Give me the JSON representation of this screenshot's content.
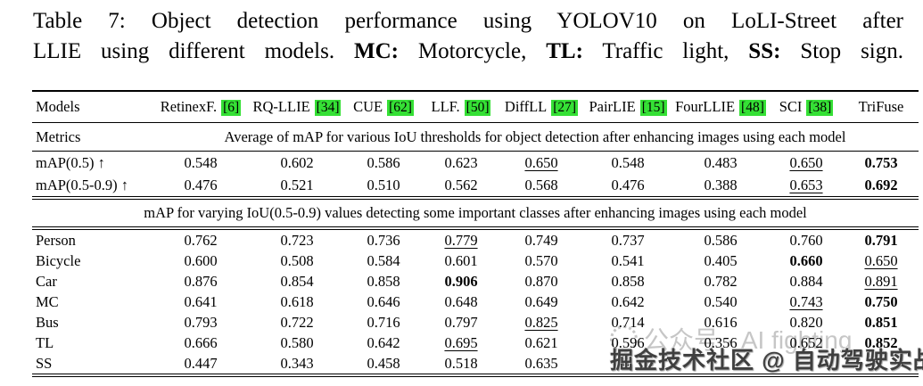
{
  "caption": {
    "line1": "Table 7: Object detection performance using YOLOV10 on LoLI-Street after",
    "line2_prefix": "LLIE using different models. ",
    "mc_label": "MC:",
    "mc_text": " Motorcycle, ",
    "tl_label": "TL:",
    "tl_text": " Traffic light, ",
    "ss_label": "SS:",
    "ss_text": " Stop sign."
  },
  "table": {
    "models_header": "Models",
    "models": [
      {
        "name": "RetinexF.",
        "cite": "[6]"
      },
      {
        "name": "RQ-LLIE",
        "cite": "[34]"
      },
      {
        "name": "CUE",
        "cite": "[62]"
      },
      {
        "name": "LLF.",
        "cite": "[50]"
      },
      {
        "name": "DiffLL",
        "cite": "[27]"
      },
      {
        "name": "PairLIE",
        "cite": "[15]"
      },
      {
        "name": "FourLLIE",
        "cite": "[48]"
      },
      {
        "name": "SCI",
        "cite": "[38]"
      },
      {
        "name": "TriFuse",
        "cite": null
      }
    ],
    "metrics_label": "Metrics",
    "metrics_description": "Average of mAP for various IoU thresholds for object detection after enhancing images using each model",
    "overall_rows": [
      {
        "label": "mAP(0.5) ↑",
        "values": [
          "0.548",
          "0.602",
          "0.586",
          "0.623",
          "0.650",
          "0.548",
          "0.483",
          "0.650",
          "0.753"
        ],
        "styles": [
          "",
          "",
          "",
          "",
          "u",
          "",
          "",
          "u",
          "b"
        ]
      },
      {
        "label": "mAP(0.5-0.9) ↑",
        "values": [
          "0.476",
          "0.521",
          "0.510",
          "0.562",
          "0.568",
          "0.476",
          "0.388",
          "0.653",
          "0.692"
        ],
        "styles": [
          "",
          "",
          "",
          "",
          "",
          "",
          "",
          "u",
          "b"
        ]
      }
    ],
    "section_header": "mAP for varying IoU(0.5-0.9) values detecting some important classes after enhancing images using each model",
    "class_rows": [
      {
        "label": "Person",
        "values": [
          "0.762",
          "0.723",
          "0.736",
          "0.779",
          "0.749",
          "0.737",
          "0.586",
          "0.760",
          "0.791"
        ],
        "styles": [
          "",
          "",
          "",
          "u",
          "",
          "",
          "",
          "",
          "b"
        ]
      },
      {
        "label": "Bicycle",
        "values": [
          "0.600",
          "0.508",
          "0.584",
          "0.601",
          "0.570",
          "0.541",
          "0.405",
          "0.660",
          "0.650"
        ],
        "styles": [
          "",
          "",
          "",
          "",
          "",
          "",
          "",
          "b",
          "u"
        ]
      },
      {
        "label": "Car",
        "values": [
          "0.876",
          "0.854",
          "0.858",
          "0.906",
          "0.870",
          "0.858",
          "0.782",
          "0.884",
          "0.891"
        ],
        "styles": [
          "",
          "",
          "",
          "b",
          "",
          "",
          "",
          "",
          "u"
        ]
      },
      {
        "label": "MC",
        "values": [
          "0.641",
          "0.618",
          "0.646",
          "0.648",
          "0.649",
          "0.642",
          "0.540",
          "0.743",
          "0.750"
        ],
        "styles": [
          "",
          "",
          "",
          "",
          "",
          "",
          "",
          "u",
          "b"
        ]
      },
      {
        "label": "Bus",
        "values": [
          "0.793",
          "0.722",
          "0.716",
          "0.797",
          "0.825",
          "0.714",
          "0.616",
          "0.820",
          "0.851"
        ],
        "styles": [
          "",
          "",
          "",
          "",
          "u",
          "",
          "",
          "",
          "b"
        ]
      },
      {
        "label": "TL",
        "values": [
          "0.666",
          "0.580",
          "0.642",
          "0.695",
          "0.621",
          "0.596",
          "0.356",
          "0.652",
          "0.852"
        ],
        "styles": [
          "",
          "",
          "",
          "u",
          "",
          "",
          "",
          "",
          "b"
        ]
      },
      {
        "label": "SS",
        "values": [
          "0.447",
          "0.343",
          "0.458",
          "0.518",
          "0.635",
          "0.",
          "",
          "",
          ""
        ],
        "styles": [
          "",
          "",
          "",
          "",
          "",
          "",
          "",
          "",
          ""
        ]
      }
    ]
  },
  "watermarks": {
    "light_text": "公众号 · AI fighting",
    "light_color": "#c6c6c6",
    "dark_text": "掘金技术社区 @ 自动驾驶实战",
    "dark_color": "#3f3f3f"
  },
  "colors": {
    "citation_green": "#35e035"
  }
}
